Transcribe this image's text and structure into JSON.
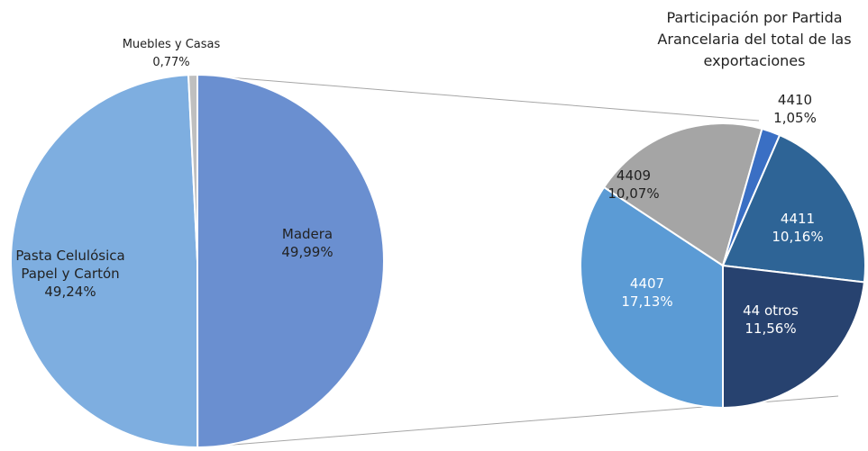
{
  "chart_data": [
    {
      "type": "pie",
      "categories": [
        "Madera",
        "Pasta Celulósica Papel y Cartón",
        "Muebles y Casas"
      ],
      "values": [
        49.99,
        49.24,
        0.77
      ],
      "value_labels": [
        "49,99%",
        "49,24%",
        "0,77%"
      ],
      "colors": [
        "#6a8fd0",
        "#7eaee0",
        "#bfbfbf"
      ]
    },
    {
      "type": "pie",
      "title": "Participación por Partida Arancelaria del total de las exportaciones",
      "categories": [
        "4407",
        "4409",
        "4410",
        "4411",
        "44 otros"
      ],
      "values": [
        17.13,
        10.07,
        1.05,
        10.16,
        11.56
      ],
      "value_labels": [
        "17,13%",
        "10,07%",
        "1,05%",
        "10,16%",
        "11,56%"
      ],
      "colors": [
        "#5b9bd5",
        "#a5a5a5",
        "#3a6fc4",
        "#2e6496",
        "#27426f"
      ]
    }
  ]
}
